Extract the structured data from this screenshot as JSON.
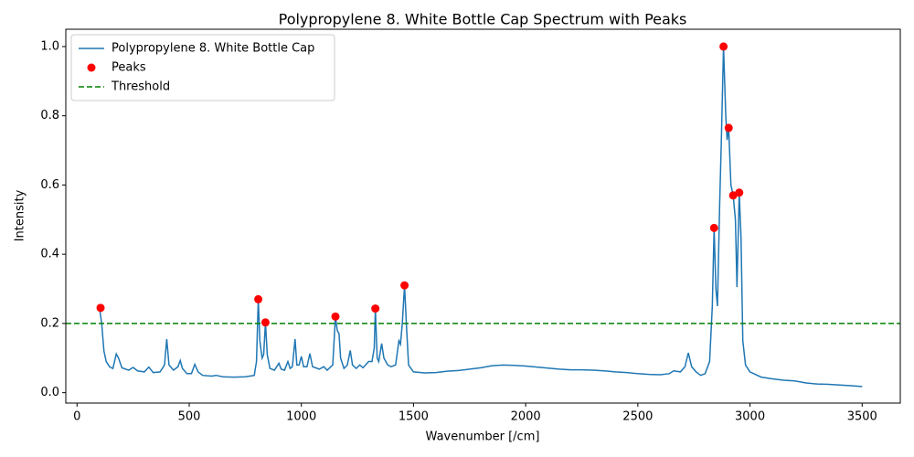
{
  "chart_data": {
    "type": "line",
    "title": "Polypropylene 8. White Bottle Cap Spectrum with Peaks",
    "xlabel": "Wavenumber [/cm]",
    "ylabel": "Intensity",
    "xlim": [
      -50,
      3670
    ],
    "ylim": [
      -0.03,
      1.05
    ],
    "xticks": [
      0,
      500,
      1000,
      1500,
      2000,
      2500,
      3000,
      3500
    ],
    "yticks": [
      {
        "value": 0,
        "label": "0.0"
      },
      0.2,
      0.4,
      0.6,
      0.8,
      {
        "value": 1,
        "label": "1.0"
      }
    ],
    "legend": "upper left",
    "x": [
      100,
      110,
      120,
      130,
      145,
      160,
      175,
      185,
      200,
      230,
      250,
      270,
      300,
      320,
      340,
      370,
      390,
      400,
      410,
      430,
      450,
      460,
      470,
      490,
      510,
      525,
      540,
      560,
      600,
      620,
      650,
      700,
      750,
      790,
      800,
      808,
      815,
      825,
      832,
      840,
      848,
      860,
      880,
      900,
      910,
      925,
      940,
      950,
      960,
      972,
      980,
      990,
      1000,
      1010,
      1025,
      1038,
      1050,
      1080,
      1100,
      1115,
      1140,
      1152,
      1160,
      1168,
      1175,
      1190,
      1205,
      1218,
      1228,
      1245,
      1260,
      1275,
      1300,
      1315,
      1325,
      1330,
      1338,
      1345,
      1358,
      1368,
      1385,
      1400,
      1420,
      1435,
      1442,
      1450,
      1460,
      1468,
      1478,
      1500,
      1550,
      1600,
      1650,
      1700,
      1750,
      1800,
      1850,
      1900,
      1950,
      2000,
      2050,
      2100,
      2150,
      2200,
      2250,
      2300,
      2350,
      2400,
      2450,
      2500,
      2550,
      2600,
      2640,
      2660,
      2690,
      2710,
      2725,
      2740,
      2760,
      2780,
      2800,
      2820,
      2832,
      2840,
      2848,
      2855,
      2865,
      2872,
      2882,
      2892,
      2898,
      2905,
      2915,
      2925,
      2935,
      2942,
      2952,
      2960,
      2968,
      2980,
      3000,
      3050,
      3100,
      3150,
      3200,
      3250,
      3300,
      3350,
      3400,
      3450,
      3500
    ],
    "series": [
      {
        "name": "Polypropylene 8. White Bottle Cap",
        "color": "#1f77b4",
        "values": [
          0.245,
          0.2,
          0.12,
          0.09,
          0.075,
          0.07,
          0.112,
          0.1,
          0.072,
          0.065,
          0.073,
          0.063,
          0.06,
          0.074,
          0.058,
          0.06,
          0.08,
          0.155,
          0.08,
          0.065,
          0.075,
          0.093,
          0.07,
          0.055,
          0.055,
          0.082,
          0.06,
          0.05,
          0.048,
          0.05,
          0.046,
          0.045,
          0.046,
          0.05,
          0.09,
          0.27,
          0.15,
          0.1,
          0.11,
          0.203,
          0.11,
          0.07,
          0.065,
          0.085,
          0.068,
          0.065,
          0.09,
          0.07,
          0.075,
          0.155,
          0.08,
          0.08,
          0.105,
          0.075,
          0.075,
          0.113,
          0.075,
          0.068,
          0.075,
          0.065,
          0.08,
          0.22,
          0.18,
          0.17,
          0.1,
          0.07,
          0.08,
          0.122,
          0.08,
          0.07,
          0.08,
          0.072,
          0.09,
          0.09,
          0.13,
          0.243,
          0.1,
          0.09,
          0.142,
          0.1,
          0.08,
          0.075,
          0.08,
          0.15,
          0.14,
          0.2,
          0.31,
          0.2,
          0.08,
          0.06,
          0.057,
          0.058,
          0.062,
          0.064,
          0.068,
          0.072,
          0.078,
          0.08,
          0.079,
          0.077,
          0.074,
          0.071,
          0.068,
          0.066,
          0.066,
          0.065,
          0.063,
          0.06,
          0.058,
          0.055,
          0.053,
          0.052,
          0.055,
          0.063,
          0.06,
          0.075,
          0.115,
          0.075,
          0.06,
          0.05,
          0.055,
          0.09,
          0.25,
          0.476,
          0.3,
          0.25,
          0.55,
          0.72,
          1.0,
          0.8,
          0.73,
          0.765,
          0.6,
          0.57,
          0.5,
          0.305,
          0.578,
          0.45,
          0.15,
          0.08,
          0.06,
          0.045,
          0.04,
          0.036,
          0.034,
          0.028,
          0.025,
          0.024,
          0.022,
          0.02,
          0.018
        ]
      }
    ],
    "peaks": {
      "name": "Peaks",
      "color": "#ff0000",
      "x": [
        105,
        808,
        840,
        1152,
        1330,
        1460,
        2840,
        2882,
        2905,
        2925,
        2952
      ],
      "values": [
        0.245,
        0.27,
        0.203,
        0.22,
        0.243,
        0.31,
        0.476,
        1.0,
        0.765,
        0.57,
        0.578
      ]
    },
    "threshold": {
      "name": "Threshold",
      "color": "#008000",
      "value": 0.2
    }
  }
}
